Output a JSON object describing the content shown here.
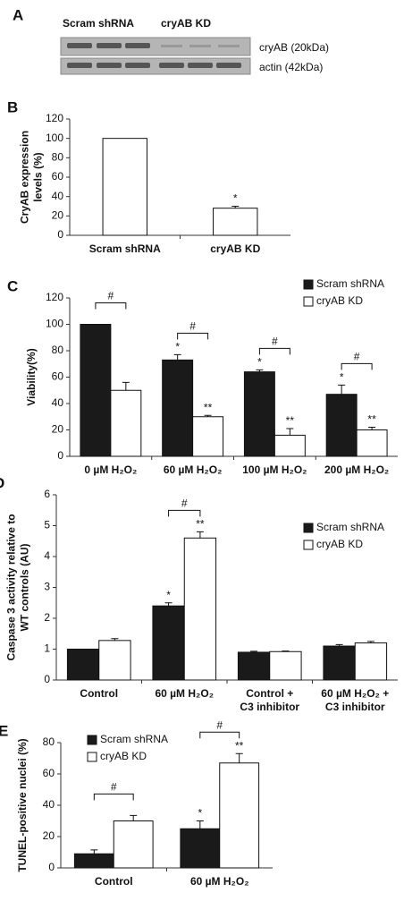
{
  "blot": {
    "panel": "A",
    "lanes": [
      "Scram shRNA",
      "cryAB KD"
    ],
    "bands": [
      "cryAB (20kDa)",
      "actin (42kDa)"
    ]
  },
  "chart_data": [
    {
      "type": "bar",
      "panel": "B",
      "ylabel": [
        "CryAB expression",
        "levels (%)"
      ],
      "categories": [
        [
          "Scram shRNA"
        ],
        [
          "cryAB KD"
        ]
      ],
      "series": [
        {
          "color": "#ffffff",
          "values": [
            100,
            28
          ],
          "errors": [
            null,
            2
          ],
          "significance": [
            null,
            "*"
          ]
        }
      ],
      "ylim": [
        0,
        120
      ],
      "yticks": [
        0,
        20,
        40,
        60,
        80,
        100,
        120
      ]
    },
    {
      "type": "bar",
      "panel": "C",
      "ylabel": [
        "Viability(%)"
      ],
      "categories": [
        [
          "0 µM H₂O₂"
        ],
        [
          "60 µM H₂O₂"
        ],
        [
          "100 µM H₂O₂"
        ],
        [
          "200 µM H₂O₂"
        ]
      ],
      "series": [
        {
          "name": "Scram shRNA",
          "color": "#1a1a1a",
          "values": [
            100,
            73,
            64,
            47
          ],
          "errors": [
            null,
            4,
            1.5,
            7
          ],
          "significance": [
            null,
            "*",
            "*",
            "*"
          ]
        },
        {
          "name": "cryAB KD",
          "color": "#ffffff",
          "values": [
            50,
            30,
            16,
            20
          ],
          "errors": [
            6,
            1,
            5,
            2
          ],
          "significance": [
            null,
            "**",
            "**",
            "**"
          ]
        }
      ],
      "brackets": [
        "#",
        "#",
        "#",
        "#"
      ],
      "ylim": [
        0,
        120
      ],
      "yticks": [
        0,
        20,
        40,
        60,
        80,
        100,
        120
      ],
      "legend": "upper right"
    },
    {
      "type": "bar",
      "panel": "D",
      "ylabel": [
        "Caspase 3 activity relative to",
        "WT controls (AU)"
      ],
      "categories": [
        [
          "Control"
        ],
        [
          "60 µM H₂O₂"
        ],
        [
          "Control +",
          "C3 inhibitor"
        ],
        [
          "60 µM H₂O₂ +",
          "C3 inhibitor"
        ]
      ],
      "series": [
        {
          "name": "Scram shRNA",
          "color": "#1a1a1a",
          "values": [
            1.0,
            2.4,
            0.9,
            1.1
          ],
          "errors": [
            null,
            0.1,
            0.03,
            0.05
          ],
          "significance": [
            null,
            "*",
            null,
            null
          ]
        },
        {
          "name": "cryAB KD",
          "color": "#ffffff",
          "values": [
            1.28,
            4.6,
            0.92,
            1.2
          ],
          "errors": [
            0.06,
            0.2,
            0.02,
            0.05
          ],
          "significance": [
            null,
            "**",
            null,
            null
          ]
        }
      ],
      "brackets": [
        null,
        "#",
        null,
        null
      ],
      "ylim": [
        0,
        6
      ],
      "yticks": [
        0,
        1,
        2,
        3,
        4,
        5,
        6
      ],
      "legend": "right"
    },
    {
      "type": "bar",
      "panel": "E",
      "ylabel": [
        "TUNEL-positive nuclei (%)"
      ],
      "categories": [
        [
          "Control"
        ],
        [
          "60 µM H₂O₂"
        ]
      ],
      "series": [
        {
          "name": "Scram shRNA",
          "color": "#1a1a1a",
          "values": [
            9,
            25
          ],
          "errors": [
            2.5,
            5
          ],
          "significance": [
            null,
            "*"
          ]
        },
        {
          "name": "cryAB KD",
          "color": "#ffffff",
          "values": [
            30,
            67
          ],
          "errors": [
            3.5,
            6
          ],
          "significance": [
            null,
            "**"
          ]
        }
      ],
      "brackets": [
        "#",
        "#"
      ],
      "ylim": [
        0,
        80
      ],
      "yticks": [
        0,
        20,
        40,
        60,
        80
      ],
      "legend": "upper left"
    }
  ]
}
